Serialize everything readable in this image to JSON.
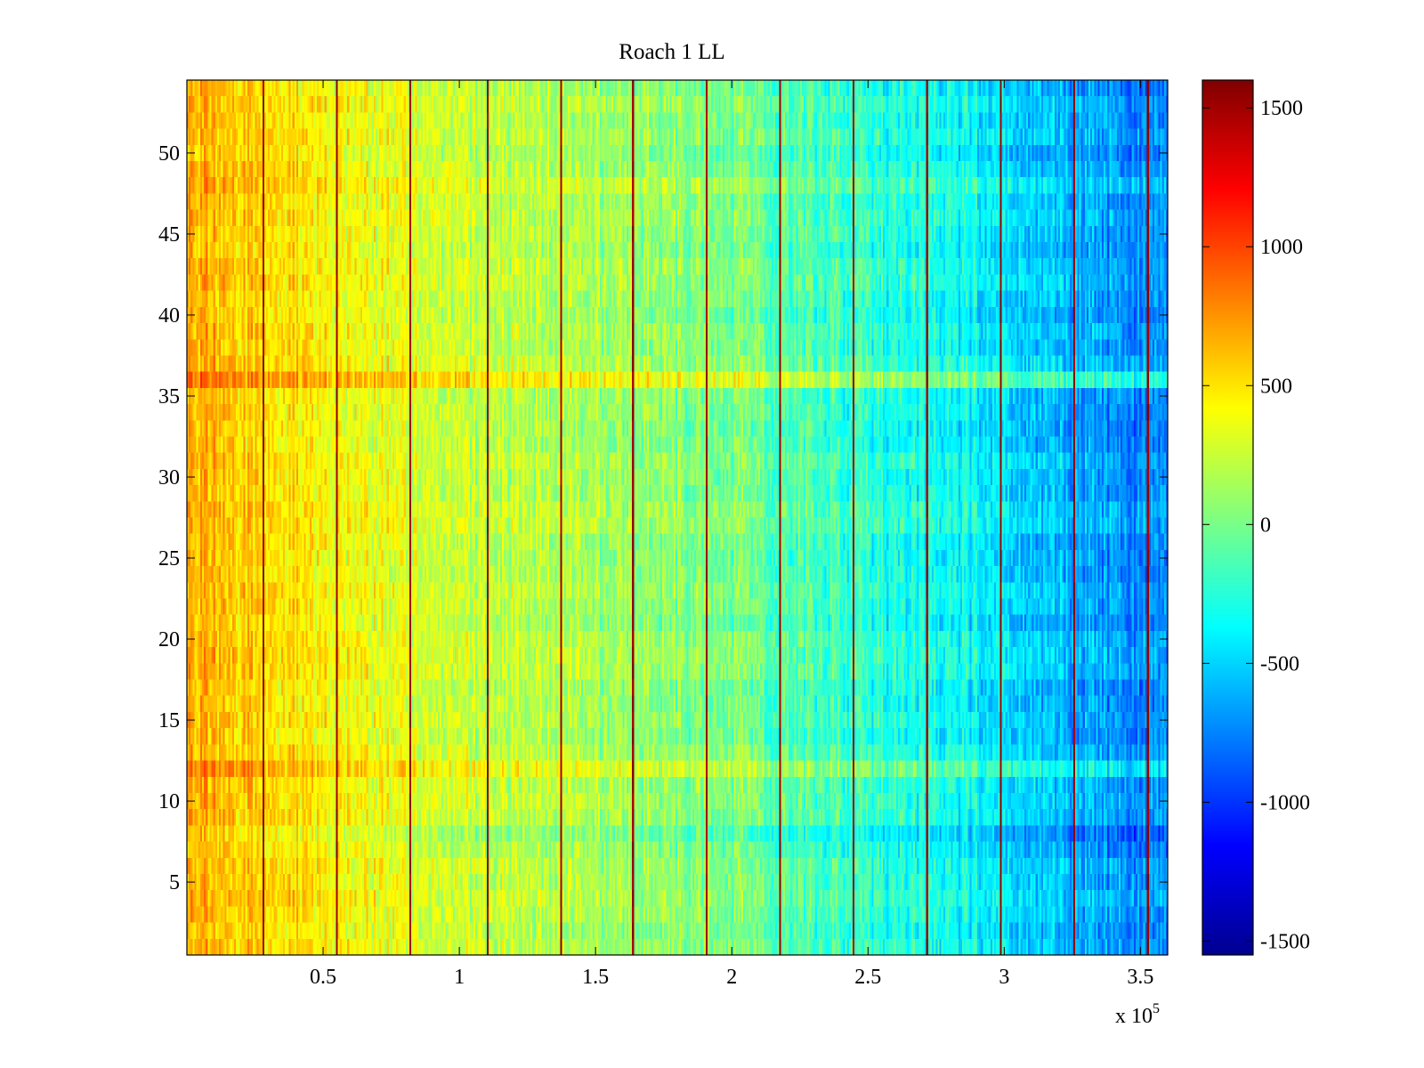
{
  "chart_data": {
    "type": "heatmap",
    "title": "Roach 1 LL",
    "xlabel": "",
    "ylabel": "",
    "x_multiplier_label": "x 10",
    "x_multiplier_exponent": "5",
    "xlim": [
      0,
      3.6
    ],
    "ylim": [
      0.5,
      54.5
    ],
    "x_ticks": [
      0.5,
      1,
      1.5,
      2,
      2.5,
      3,
      3.5
    ],
    "x_tick_labels": [
      "0.5",
      "1",
      "1.5",
      "2",
      "2.5",
      "3",
      "3.5"
    ],
    "y_ticks": [
      5,
      10,
      15,
      20,
      25,
      30,
      35,
      40,
      45,
      50
    ],
    "y_tick_labels": [
      "5",
      "10",
      "15",
      "20",
      "25",
      "30",
      "35",
      "40",
      "45",
      "50"
    ],
    "rows": 54,
    "colorbar": {
      "colormap": "jet",
      "clim": [
        -1550,
        1600
      ],
      "ticks": [
        1500,
        1000,
        500,
        0,
        -500,
        -1000,
        -1500
      ],
      "tick_labels": [
        "1500",
        "1000",
        "500",
        "0",
        "-500",
        "-1000",
        "-1500"
      ]
    },
    "x_value_profile": {
      "x": [
        0,
        0.5,
        1.0,
        1.5,
        2.0,
        2.5,
        3.0,
        3.3,
        3.6
      ],
      "mean_value": [
        650,
        450,
        250,
        150,
        0,
        -250,
        -450,
        -650,
        -750
      ]
    },
    "boundary_lines_x": [
      0.28,
      0.55,
      0.82,
      1.1,
      1.37,
      1.64,
      1.91,
      2.18,
      2.45,
      2.72,
      2.99,
      3.26,
      3.53
    ],
    "strong_rows": [
      {
        "row": 36,
        "offset": 320
      },
      {
        "row": 12,
        "offset": 220
      },
      {
        "row": 48,
        "offset": 160
      },
      {
        "row": 8,
        "offset": -160
      }
    ]
  }
}
